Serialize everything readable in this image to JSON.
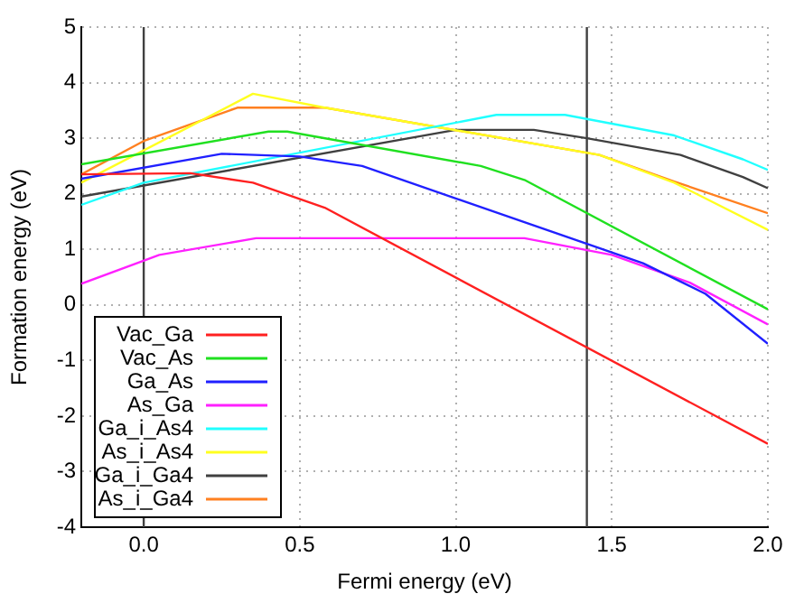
{
  "chart_data": {
    "type": "line",
    "xlabel": "Fermi energy (eV)",
    "ylabel": "Formation energy (eV)",
    "xlim": [
      -0.2,
      2.0
    ],
    "xticks": [
      {
        "value": 0,
        "label": "0.0"
      },
      0.5,
      {
        "value": 1,
        "label": "1.0"
      },
      1.5,
      {
        "value": 2,
        "label": "2.0"
      }
    ],
    "ylim": [
      -4,
      5
    ],
    "yticks": [
      -4,
      -3,
      -2,
      -1,
      0,
      1,
      2,
      3,
      4,
      5
    ],
    "grid": true,
    "legend": "bottom left",
    "marker": "none",
    "line_style": "solid",
    "ref_lines": [
      {
        "axis": "x",
        "value": 0,
        "color": "#404040"
      },
      {
        "axis": "x",
        "value": 1.42,
        "color": "#404040"
      }
    ],
    "series": [
      {
        "name": "Vac_Ga",
        "color": "#ff2020",
        "x": [
          -0.2,
          0.15,
          0.35,
          0.58,
          2.0
        ],
        "values": [
          2.35,
          2.37,
          2.2,
          1.75,
          -2.5
        ]
      },
      {
        "name": "Vac_As",
        "color": "#20e020",
        "x": [
          -0.2,
          0.4,
          0.46,
          1.08,
          1.22,
          2.0
        ],
        "values": [
          2.53,
          3.12,
          3.12,
          2.5,
          2.25,
          -0.08
        ]
      },
      {
        "name": "Ga_As",
        "color": "#2020ff",
        "x": [
          -0.2,
          0.25,
          0.5,
          0.7,
          1.6,
          1.8,
          2.0
        ],
        "values": [
          2.27,
          2.72,
          2.67,
          2.5,
          0.75,
          0.2,
          -0.7
        ]
      },
      {
        "name": "As_Ga",
        "color": "#ff20ff",
        "x": [
          -0.2,
          0.05,
          0.36,
          1.22,
          1.5,
          1.75,
          2.0
        ],
        "values": [
          0.38,
          0.9,
          1.2,
          1.2,
          0.9,
          0.4,
          -0.35
        ]
      },
      {
        "name": "Ga_i_As4",
        "color": "#20ffff",
        "x": [
          -0.2,
          0.0,
          1.13,
          1.35,
          1.7,
          1.92,
          2.0
        ],
        "values": [
          1.8,
          2.2,
          3.42,
          3.42,
          3.05,
          2.62,
          2.43
        ]
      },
      {
        "name": "As_i_As4",
        "color": "#ffff20",
        "x": [
          -0.2,
          0.35,
          0.58,
          1.46,
          1.7,
          2.0
        ],
        "values": [
          2.2,
          3.8,
          3.55,
          2.7,
          2.2,
          1.35
        ]
      },
      {
        "name": "Ga_i_Ga4",
        "color": "#404040",
        "x": [
          -0.2,
          1.0,
          1.25,
          1.42,
          1.72,
          1.92,
          2.0
        ],
        "values": [
          1.95,
          3.15,
          3.15,
          3.0,
          2.7,
          2.3,
          2.1
        ]
      },
      {
        "name": "As_i_Ga4",
        "color": "#ff8020",
        "x": [
          -0.2,
          0.0,
          0.3,
          0.58,
          1.46,
          1.7,
          2.0
        ],
        "values": [
          2.35,
          2.95,
          3.55,
          3.55,
          2.7,
          2.22,
          1.65
        ]
      }
    ]
  }
}
